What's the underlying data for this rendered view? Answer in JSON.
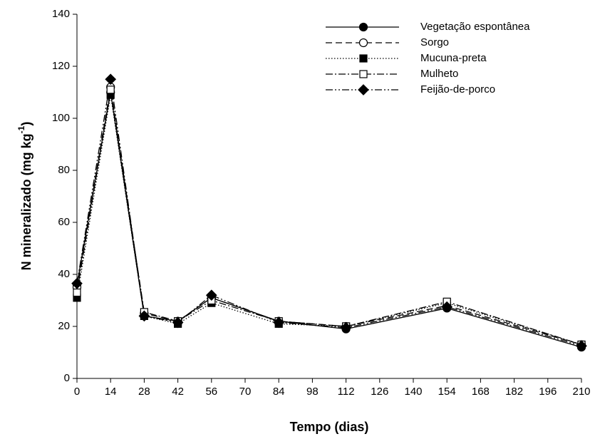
{
  "chart_data": {
    "type": "line",
    "xlabel": "Tempo (dias)",
    "ylabel": {
      "text": "N mineralizado (mg kg",
      "sup": "-1",
      "end": ")"
    },
    "x": [
      0,
      14,
      28,
      42,
      56,
      84,
      112,
      154,
      210
    ],
    "xlim": [
      0,
      210
    ],
    "xticks": [
      0,
      14,
      28,
      42,
      56,
      70,
      84,
      98,
      112,
      126,
      140,
      154,
      168,
      182,
      196,
      210
    ],
    "ylim": [
      0,
      140
    ],
    "yticks": [
      0,
      20,
      40,
      60,
      80,
      100,
      120,
      140
    ],
    "grid": false,
    "legend": "upper right",
    "series": [
      {
        "name": "Vegetação espontânea",
        "color": "#000000",
        "dash": "solid",
        "marker": "circle",
        "filled": true,
        "values": [
          36,
          110,
          24,
          22,
          31,
          22,
          19,
          27,
          12
        ]
      },
      {
        "name": "Sorgo",
        "color": "#000000",
        "dash": "dashed",
        "marker": "circle",
        "filled": false,
        "values": [
          35,
          112,
          25,
          22,
          31,
          22,
          20,
          28,
          13
        ]
      },
      {
        "name": "Mucuna-preta",
        "color": "#000000",
        "dash": "dotted",
        "marker": "square",
        "filled": true,
        "values": [
          31,
          109,
          24,
          21,
          29,
          21,
          20,
          29,
          13
        ]
      },
      {
        "name": "Mulheto",
        "color": "#000000",
        "dash": "dashdot",
        "marker": "square",
        "filled": false,
        "values": [
          33,
          111,
          25.5,
          22,
          30,
          22,
          20,
          29.5,
          13
        ]
      },
      {
        "name": "Feijão-de-porco",
        "color": "#000000",
        "dash": "dashdotdot",
        "marker": "diamond",
        "filled": true,
        "values": [
          36.5,
          115,
          24,
          21.5,
          32,
          21.5,
          19.5,
          27.5,
          12.5
        ]
      }
    ]
  }
}
